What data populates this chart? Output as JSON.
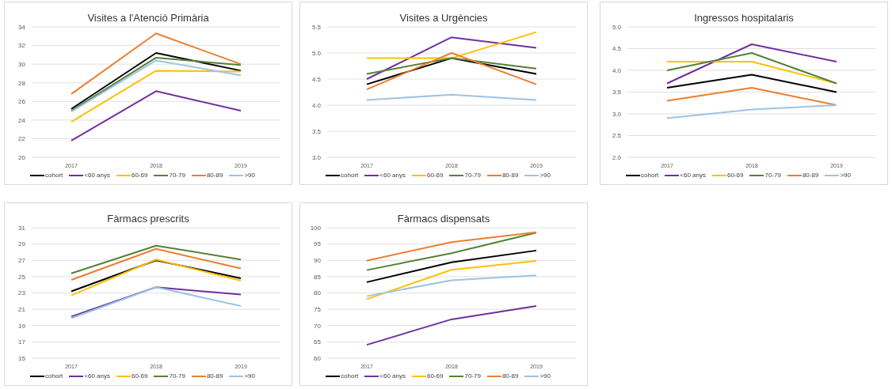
{
  "chart_data": [
    {
      "type": "line",
      "title": "Visites a l'Atenció Primària",
      "categories": [
        "2017",
        "2018",
        "2019"
      ],
      "ylim": [
        20,
        34
      ],
      "yticks": [
        20,
        22,
        24,
        26,
        28,
        30,
        32,
        34
      ],
      "grid": "y",
      "legend": "bottom",
      "marker": "none",
      "series": [
        {
          "name": "cohort",
          "color": "#000000",
          "values": [
            25.2,
            31.2,
            29.3
          ]
        },
        {
          "name": "<60 anys",
          "color": "#7030a0",
          "values": [
            21.8,
            27.1,
            25.0
          ]
        },
        {
          "name": "60-69",
          "color": "#ffc000",
          "values": [
            23.8,
            29.3,
            29.2
          ]
        },
        {
          "name": "70-79",
          "color": "#548235",
          "values": [
            25.0,
            30.7,
            29.9
          ]
        },
        {
          "name": "80-89",
          "color": "#ed7d31",
          "values": [
            26.8,
            33.3,
            30.0
          ]
        },
        {
          "name": ">90",
          "color": "#9dc3e6",
          "values": [
            24.9,
            30.4,
            28.8
          ]
        }
      ]
    },
    {
      "type": "line",
      "title": "Visites a Urgències",
      "categories": [
        "2017",
        "2018",
        "2019"
      ],
      "ylim": [
        3.0,
        5.5
      ],
      "yticks": [
        {
          "value": 3,
          "label": "3.0"
        },
        3.5,
        {
          "value": 4,
          "label": "4.0"
        },
        4.5,
        {
          "value": 5,
          "label": "5.0"
        },
        5.5
      ],
      "grid": "y",
      "legend": "bottom",
      "marker": "none",
      "series": [
        {
          "name": "cohort",
          "color": "#000000",
          "values": [
            4.4,
            4.9,
            4.6
          ]
        },
        {
          "name": "<60 anys",
          "color": "#7030a0",
          "values": [
            4.5,
            5.3,
            5.1
          ]
        },
        {
          "name": "60-69",
          "color": "#ffc000",
          "values": [
            4.9,
            4.9,
            5.4
          ]
        },
        {
          "name": "70-79",
          "color": "#548235",
          "values": [
            4.6,
            4.9,
            4.7
          ]
        },
        {
          "name": "80-89",
          "color": "#ed7d31",
          "values": [
            4.3,
            5.0,
            4.4
          ]
        },
        {
          "name": ">90",
          "color": "#9dc3e6",
          "values": [
            4.1,
            4.2,
            4.1
          ]
        }
      ]
    },
    {
      "type": "line",
      "title": "Ingressos hospitalaris",
      "categories": [
        "2017",
        "2018",
        "2019"
      ],
      "ylim": [
        2.0,
        5.0
      ],
      "yticks": [
        {
          "value": 2,
          "label": "2.0"
        },
        2.5,
        {
          "value": 3,
          "label": "3.0"
        },
        3.5,
        {
          "value": 4,
          "label": "4.0"
        },
        4.5,
        {
          "value": 5,
          "label": "5.0"
        }
      ],
      "grid": "y",
      "legend": "bottom",
      "marker": "none",
      "series": [
        {
          "name": "cohort",
          "color": "#000000",
          "values": [
            3.6,
            3.9,
            3.5
          ]
        },
        {
          "name": "<60 anys",
          "color": "#7030a0",
          "values": [
            3.7,
            4.6,
            4.2
          ]
        },
        {
          "name": "60-69",
          "color": "#ffc000",
          "values": [
            4.2,
            4.2,
            3.7
          ]
        },
        {
          "name": "70-79",
          "color": "#548235",
          "values": [
            4.0,
            4.4,
            3.7
          ]
        },
        {
          "name": "80-89",
          "color": "#ed7d31",
          "values": [
            3.3,
            3.6,
            3.2
          ]
        },
        {
          "name": ">90",
          "color": "#9dc3e6",
          "values": [
            2.9,
            3.1,
            3.2
          ]
        }
      ]
    },
    {
      "type": "line",
      "title": "Fàrmacs prescrits",
      "categories": [
        "2017",
        "2018",
        "2019"
      ],
      "ylim": [
        15,
        31
      ],
      "yticks": [
        15,
        17,
        19,
        21,
        23,
        25,
        27,
        29,
        31
      ],
      "grid": "y",
      "legend": "bottom",
      "marker": "none",
      "series": [
        {
          "name": "cohort",
          "color": "#000000",
          "values": [
            23.2,
            27.0,
            24.8
          ]
        },
        {
          "name": "<60 anys",
          "color": "#7030a0",
          "values": [
            20.1,
            23.7,
            22.8
          ]
        },
        {
          "name": "60-69",
          "color": "#ffc000",
          "values": [
            22.7,
            27.1,
            24.5
          ]
        },
        {
          "name": "70-79",
          "color": "#548235",
          "values": [
            25.4,
            28.8,
            27.1
          ]
        },
        {
          "name": "80-89",
          "color": "#ed7d31",
          "values": [
            24.6,
            28.4,
            26.0
          ]
        },
        {
          "name": ">90",
          "color": "#9dc3e6",
          "values": [
            19.9,
            23.7,
            21.4
          ]
        }
      ]
    },
    {
      "type": "line",
      "title": "Fàrmacs dispensats",
      "categories": [
        "2017",
        "2018",
        "2019"
      ],
      "ylim": [
        60,
        100
      ],
      "yticks": [
        60,
        65,
        70,
        75,
        80,
        85,
        90,
        95,
        100
      ],
      "grid": "y",
      "legend": "bottom",
      "marker": "none",
      "series": [
        {
          "name": "cohort",
          "color": "#000000",
          "values": [
            83.3,
            89.4,
            93.0
          ]
        },
        {
          "name": "<60 anys",
          "color": "#7030a0",
          "values": [
            64.1,
            71.9,
            76.0
          ]
        },
        {
          "name": "60-69",
          "color": "#ffc000",
          "values": [
            78.1,
            87.1,
            89.8
          ]
        },
        {
          "name": "70-79",
          "color": "#548235",
          "values": [
            87.0,
            92.2,
            98.5
          ]
        },
        {
          "name": "80-89",
          "color": "#ed7d31",
          "values": [
            89.9,
            95.6,
            98.6
          ]
        },
        {
          "name": ">90",
          "color": "#9dc3e6",
          "values": [
            79.0,
            83.9,
            85.4
          ]
        }
      ]
    }
  ]
}
